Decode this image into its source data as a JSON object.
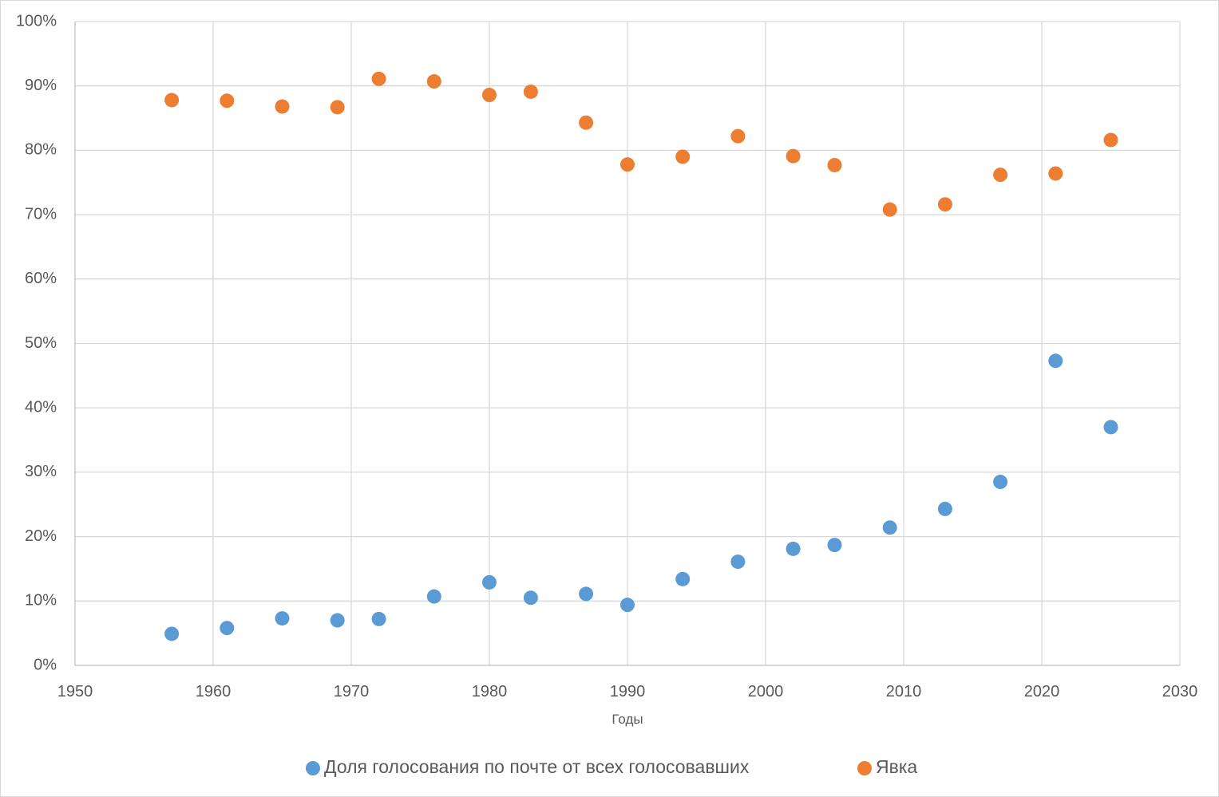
{
  "chart_data": {
    "type": "scatter",
    "title": "",
    "xlabel": "Годы",
    "ylabel": "",
    "xlim": [
      1950,
      2030
    ],
    "ylim": [
      0,
      100
    ],
    "x_ticks": [
      1950,
      1960,
      1970,
      1980,
      1990,
      2000,
      2010,
      2020,
      2030
    ],
    "y_ticks": [
      "0%",
      "10%",
      "20%",
      "30%",
      "40%",
      "50%",
      "60%",
      "70%",
      "80%",
      "90%",
      "100%"
    ],
    "grid": true,
    "legend_position": "bottom",
    "series": [
      {
        "name": "Доля голосования по почте от всех голосовавших",
        "color": "#5b9bd5",
        "points": [
          [
            1957,
            4.9
          ],
          [
            1961,
            5.8
          ],
          [
            1965,
            7.3
          ],
          [
            1969,
            7.0
          ],
          [
            1972,
            7.2
          ],
          [
            1976,
            10.7
          ],
          [
            1980,
            12.9
          ],
          [
            1983,
            10.5
          ],
          [
            1987,
            11.1
          ],
          [
            1990,
            9.4
          ],
          [
            1994,
            13.4
          ],
          [
            1998,
            16.1
          ],
          [
            2002,
            18.1
          ],
          [
            2005,
            18.7
          ],
          [
            2009,
            21.4
          ],
          [
            2013,
            24.3
          ],
          [
            2017,
            28.5
          ],
          [
            2021,
            47.3
          ],
          [
            2025,
            37.0
          ]
        ]
      },
      {
        "name": "Явка",
        "color": "#ed7d31",
        "points": [
          [
            1957,
            87.8
          ],
          [
            1961,
            87.7
          ],
          [
            1965,
            86.8
          ],
          [
            1969,
            86.7
          ],
          [
            1972,
            91.1
          ],
          [
            1976,
            90.7
          ],
          [
            1980,
            88.6
          ],
          [
            1983,
            89.1
          ],
          [
            1987,
            84.3
          ],
          [
            1990,
            77.8
          ],
          [
            1994,
            79.0
          ],
          [
            1998,
            82.2
          ],
          [
            2002,
            79.1
          ],
          [
            2005,
            77.7
          ],
          [
            2009,
            70.8
          ],
          [
            2013,
            71.6
          ],
          [
            2017,
            76.2
          ],
          [
            2021,
            76.4
          ],
          [
            2025,
            81.6
          ]
        ]
      }
    ]
  }
}
